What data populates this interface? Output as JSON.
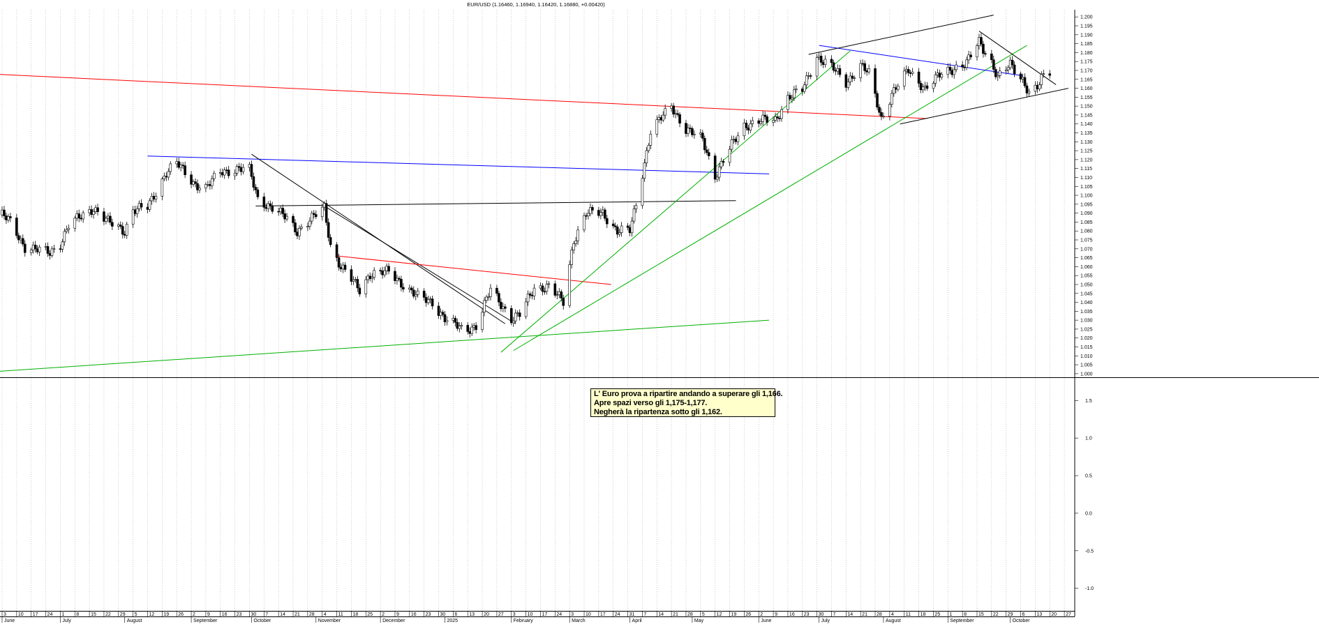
{
  "chart_data": {
    "type": "candlestick",
    "title": "EUR/USD (1.16460, 1.16940, 1.16420, 1.16880, +0.00420)",
    "ylim": [
      0.998,
      1.204
    ],
    "y_ticks": [
      "1.000",
      "1.005",
      "1.010",
      "1.015",
      "1.020",
      "1.025",
      "1.030",
      "1.035",
      "1.040",
      "1.045",
      "1.050",
      "1.055",
      "1.060",
      "1.065",
      "1.070",
      "1.075",
      "1.080",
      "1.085",
      "1.090",
      "1.095",
      "1.100",
      "1.105",
      "1.110",
      "1.115",
      "1.120",
      "1.125",
      "1.130",
      "1.135",
      "1.140",
      "1.145",
      "1.150",
      "1.155",
      "1.160",
      "1.165",
      "1.170",
      "1.175",
      "1.180",
      "1.185",
      "1.190",
      "1.195",
      "1.200"
    ],
    "lower_ylim": [
      -1.3,
      1.8
    ],
    "lower_ticks": [
      "1.5",
      "1.0",
      "0.5",
      "0.0",
      "-0.5",
      "-1.0"
    ],
    "x_start": "2024-06-03",
    "x_end": "2025-10-31",
    "week_labels": [
      "3",
      "10",
      "17",
      "24",
      "1",
      "8",
      "15",
      "22",
      "29",
      "5",
      "12",
      "19",
      "26",
      "2",
      "9",
      "16",
      "23",
      "30",
      "7",
      "14",
      "21",
      "28",
      "4",
      "11",
      "18",
      "25",
      "2",
      "9",
      "16",
      "23",
      "30",
      "6",
      "13",
      "20",
      "27",
      "3",
      "10",
      "17",
      "24",
      "3",
      "10",
      "17",
      "24",
      "31",
      "7",
      "14",
      "21",
      "28",
      "5",
      "12",
      "19",
      "26",
      "2",
      "9",
      "16",
      "23",
      "30",
      "7",
      "14",
      "21",
      "28",
      "4",
      "11",
      "18",
      "25",
      "1",
      "8",
      "15",
      "22",
      "29",
      "6",
      "13",
      "20",
      "27"
    ],
    "months": [
      {
        "label": "June",
        "date": "2024-06-03"
      },
      {
        "label": "July",
        "date": "2024-07-01"
      },
      {
        "label": "August",
        "date": "2024-08-01"
      },
      {
        "label": "September",
        "date": "2024-09-02"
      },
      {
        "label": "October",
        "date": "2024-10-01"
      },
      {
        "label": "November",
        "date": "2024-11-01"
      },
      {
        "label": "December",
        "date": "2024-12-02"
      },
      {
        "label": "2025",
        "date": "2025-01-02"
      },
      {
        "label": "February",
        "date": "2025-02-03"
      },
      {
        "label": "March",
        "date": "2025-03-03"
      },
      {
        "label": "April",
        "date": "2025-04-01"
      },
      {
        "label": "May",
        "date": "2025-05-01"
      },
      {
        "label": "June",
        "date": "2025-06-02"
      },
      {
        "label": "July",
        "date": "2025-07-01"
      },
      {
        "label": "August",
        "date": "2025-08-01"
      },
      {
        "label": "September",
        "date": "2025-09-01"
      },
      {
        "label": "October",
        "date": "2025-10-01"
      }
    ],
    "close_path": [
      [
        "2024-06-03",
        1.089
      ],
      [
        "2024-06-07",
        1.085
      ],
      [
        "2024-06-14",
        1.071
      ],
      [
        "2024-06-21",
        1.069
      ],
      [
        "2024-06-26",
        1.068
      ],
      [
        "2024-07-01",
        1.073
      ],
      [
        "2024-07-05",
        1.083
      ],
      [
        "2024-07-12",
        1.089
      ],
      [
        "2024-07-17",
        1.093
      ],
      [
        "2024-07-24",
        1.085
      ],
      [
        "2024-08-01",
        1.08
      ],
      [
        "2024-08-05",
        1.092
      ],
      [
        "2024-08-12",
        1.093
      ],
      [
        "2024-08-21",
        1.113
      ],
      [
        "2024-08-26",
        1.118
      ],
      [
        "2024-09-03",
        1.107
      ],
      [
        "2024-09-09",
        1.104
      ],
      [
        "2024-09-16",
        1.113
      ],
      [
        "2024-09-25",
        1.115
      ],
      [
        "2024-09-30",
        1.114
      ],
      [
        "2024-10-04",
        1.098
      ],
      [
        "2024-10-11",
        1.093
      ],
      [
        "2024-10-18",
        1.087
      ],
      [
        "2024-10-23",
        1.08
      ],
      [
        "2024-10-31",
        1.088
      ],
      [
        "2024-11-05",
        1.093
      ],
      [
        "2024-11-08",
        1.072
      ],
      [
        "2024-11-13",
        1.06
      ],
      [
        "2024-11-22",
        1.047
      ],
      [
        "2024-11-27",
        1.056
      ],
      [
        "2024-12-06",
        1.057
      ],
      [
        "2024-12-13",
        1.05
      ],
      [
        "2024-12-20",
        1.043
      ],
      [
        "2024-12-27",
        1.04
      ],
      [
        "2025-01-02",
        1.031
      ],
      [
        "2025-01-10",
        1.025
      ],
      [
        "2025-01-13",
        1.025
      ],
      [
        "2025-01-17",
        1.027
      ],
      [
        "2025-01-24",
        1.047
      ],
      [
        "2025-01-31",
        1.036
      ],
      [
        "2025-02-03",
        1.031
      ],
      [
        "2025-02-07",
        1.033
      ],
      [
        "2025-02-14",
        1.048
      ],
      [
        "2025-02-21",
        1.049
      ],
      [
        "2025-02-28",
        1.04
      ],
      [
        "2025-03-05",
        1.075
      ],
      [
        "2025-03-11",
        1.09
      ],
      [
        "2025-03-19",
        1.09
      ],
      [
        "2025-03-26",
        1.08
      ],
      [
        "2025-04-01",
        1.08
      ],
      [
        "2025-04-04",
        1.095
      ],
      [
        "2025-04-11",
        1.136
      ],
      [
        "2025-04-21",
        1.15
      ],
      [
        "2025-04-28",
        1.137
      ],
      [
        "2025-05-06",
        1.131
      ],
      [
        "2025-05-12",
        1.111
      ],
      [
        "2025-05-20",
        1.128
      ],
      [
        "2025-05-26",
        1.139
      ],
      [
        "2025-06-03",
        1.142
      ],
      [
        "2025-06-10",
        1.142
      ],
      [
        "2025-06-16",
        1.155
      ],
      [
        "2025-06-23",
        1.159
      ],
      [
        "2025-06-30",
        1.178
      ],
      [
        "2025-07-07",
        1.172
      ],
      [
        "2025-07-14",
        1.163
      ],
      [
        "2025-07-21",
        1.173
      ],
      [
        "2025-07-25",
        1.168
      ],
      [
        "2025-07-31",
        1.143
      ],
      [
        "2025-08-05",
        1.157
      ],
      [
        "2025-08-13",
        1.17
      ],
      [
        "2025-08-21",
        1.16
      ],
      [
        "2025-08-29",
        1.168
      ],
      [
        "2025-09-05",
        1.172
      ],
      [
        "2025-09-10",
        1.174
      ],
      [
        "2025-09-16",
        1.186
      ],
      [
        "2025-09-22",
        1.175
      ],
      [
        "2025-09-25",
        1.166
      ],
      [
        "2025-10-01",
        1.173
      ],
      [
        "2025-10-07",
        1.165
      ],
      [
        "2025-10-10",
        1.158
      ],
      [
        "2025-10-14",
        1.16
      ],
      [
        "2025-10-16",
        1.165
      ],
      [
        "2025-10-17",
        1.166
      ],
      [
        "2025-10-20",
        1.1688
      ]
    ],
    "trendlines": [
      {
        "color": "#ff0000",
        "from": [
          "2024-05-28",
          1.168
        ],
        "to": [
          "2025-08-22",
          1.143
        ]
      },
      {
        "color": "#0000ff",
        "from": [
          "2024-08-12",
          1.122
        ],
        "to": [
          "2025-06-07",
          1.112
        ]
      },
      {
        "color": "#000000",
        "from": [
          "2024-10-03",
          1.094
        ],
        "to": [
          "2025-05-22",
          1.097
        ]
      },
      {
        "color": "#000000",
        "from": [
          "2024-10-01",
          1.123
        ],
        "to": [
          "2025-01-31",
          1.028
        ]
      },
      {
        "color": "#000000",
        "from": [
          "2024-11-05",
          1.094
        ],
        "to": [
          "2025-02-05",
          1.028
        ]
      },
      {
        "color": "#ff0000",
        "from": [
          "2024-11-11",
          1.066
        ],
        "to": [
          "2025-03-23",
          1.05
        ]
      },
      {
        "color": "#00b000",
        "from": [
          "2024-05-28",
          1.001
        ],
        "to": [
          "2025-06-07",
          1.03
        ]
      },
      {
        "color": "#00b000",
        "from": [
          "2025-01-29",
          1.012
        ],
        "to": [
          "2025-07-16",
          1.181
        ]
      },
      {
        "color": "#00b000",
        "from": [
          "2025-02-04",
          1.013
        ],
        "to": [
          "2025-10-09",
          1.184
        ]
      },
      {
        "color": "#0000ff",
        "from": [
          "2025-07-01",
          1.184
        ],
        "to": [
          "2025-10-07",
          1.167
        ]
      },
      {
        "color": "#000000",
        "from": [
          "2025-06-26",
          1.179
        ],
        "to": [
          "2025-09-23",
          1.201
        ]
      },
      {
        "color": "#000000",
        "from": [
          "2025-09-16",
          1.192
        ],
        "to": [
          "2025-10-23",
          1.162
        ]
      },
      {
        "color": "#000000",
        "from": [
          "2025-08-09",
          1.14
        ],
        "to": [
          "2025-10-29",
          1.16
        ]
      }
    ]
  },
  "comment": {
    "line1": "L' Euro prova a ripartire andando a superare gli 1,166.",
    "line2": "Apre spazi verso gli 1,175-1,177.",
    "line3": "Negherà la ripartenza sotto gli 1,162."
  },
  "colors": {
    "candle": "#000000",
    "background": "#ffffff",
    "grid": "#aaaaaa",
    "comment_bg": "#ffffcc"
  }
}
